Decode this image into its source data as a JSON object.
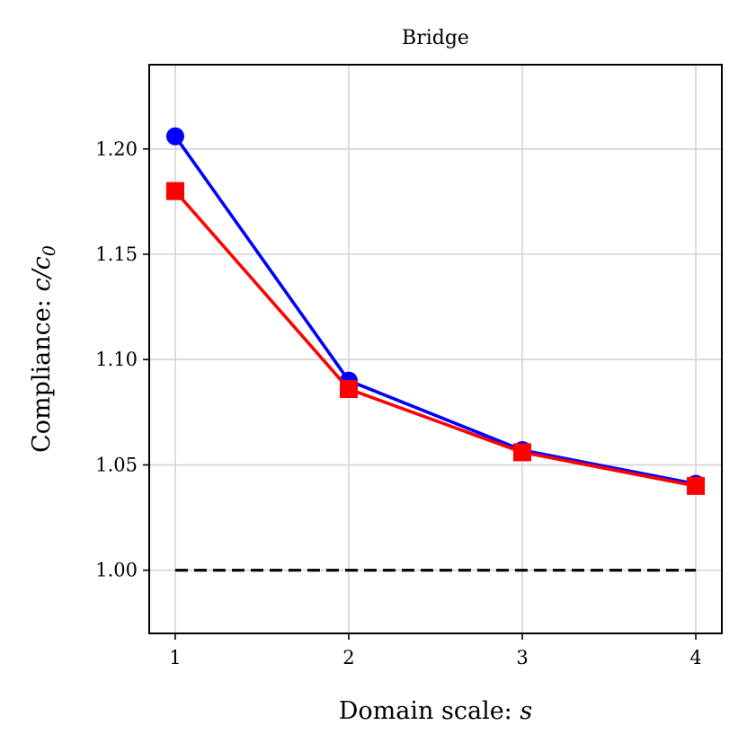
{
  "chart_data": {
    "type": "line",
    "title": "Bridge",
    "xlabel": {
      "text": "Domain scale: ",
      "math": "s"
    },
    "ylabel": {
      "text": "Compliance: ",
      "math": "c/c",
      "subscript": "0"
    },
    "x": [
      1,
      2,
      3,
      4
    ],
    "xlim": [
      0.85,
      4.15
    ],
    "ylim": [
      0.97,
      1.24
    ],
    "xticks": [
      1,
      2,
      3,
      4
    ],
    "xtick_labels": [
      "1",
      "2",
      "3",
      "4"
    ],
    "yticks": [
      1.0,
      1.05,
      1.1,
      1.15,
      1.2
    ],
    "ytick_labels": [
      "1.00",
      "1.05",
      "1.10",
      "1.15",
      "1.20"
    ],
    "grid": true,
    "series": [
      {
        "values": [
          1.206,
          1.09,
          1.057,
          1.041
        ],
        "color": "#0000ff",
        "marker": "circle"
      },
      {
        "values": [
          1.18,
          1.086,
          1.056,
          1.04
        ],
        "color": "#ff0000",
        "marker": "square"
      }
    ],
    "reference_line": {
      "y": 1.0,
      "x_range": [
        1,
        4
      ],
      "color": "#000000",
      "style": "dashed"
    }
  }
}
